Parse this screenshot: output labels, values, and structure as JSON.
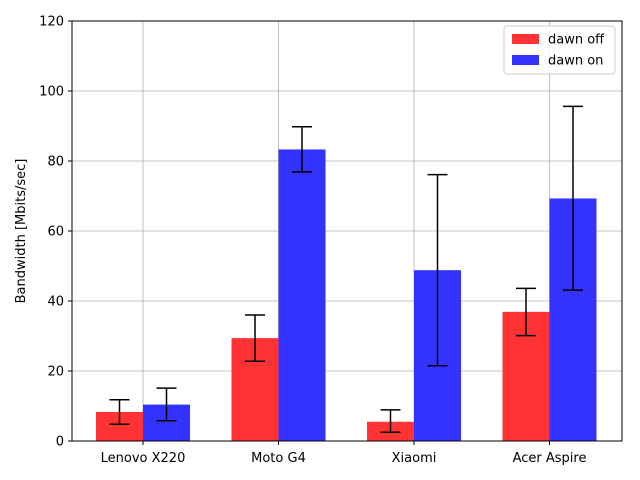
{
  "chart_data": {
    "type": "bar",
    "title": "",
    "xlabel": "",
    "ylabel": "Bandwidth [Mbits/sec]",
    "categories": [
      "Lenovo X220",
      "Moto G4",
      "Xiaomi",
      "Acer Aspire"
    ],
    "series": [
      {
        "name": "dawn off",
        "color": "#ff3333",
        "values": [
          8.3,
          29.4,
          5.5,
          36.9
        ],
        "err_low": [
          4.8,
          22.8,
          2.5,
          30.1
        ],
        "err_high": [
          11.8,
          36.0,
          8.9,
          43.6
        ]
      },
      {
        "name": "dawn on",
        "color": "#3333ff",
        "values": [
          10.4,
          83.3,
          48.8,
          69.3
        ],
        "err_low": [
          5.8,
          76.9,
          21.5,
          43.1
        ],
        "err_high": [
          15.1,
          89.8,
          76.1,
          95.6
        ]
      }
    ],
    "yticks": [
      0,
      20,
      40,
      60,
      80,
      100,
      120
    ],
    "ylim": [
      0,
      120
    ],
    "grid": true,
    "legend_position": "top-right"
  }
}
